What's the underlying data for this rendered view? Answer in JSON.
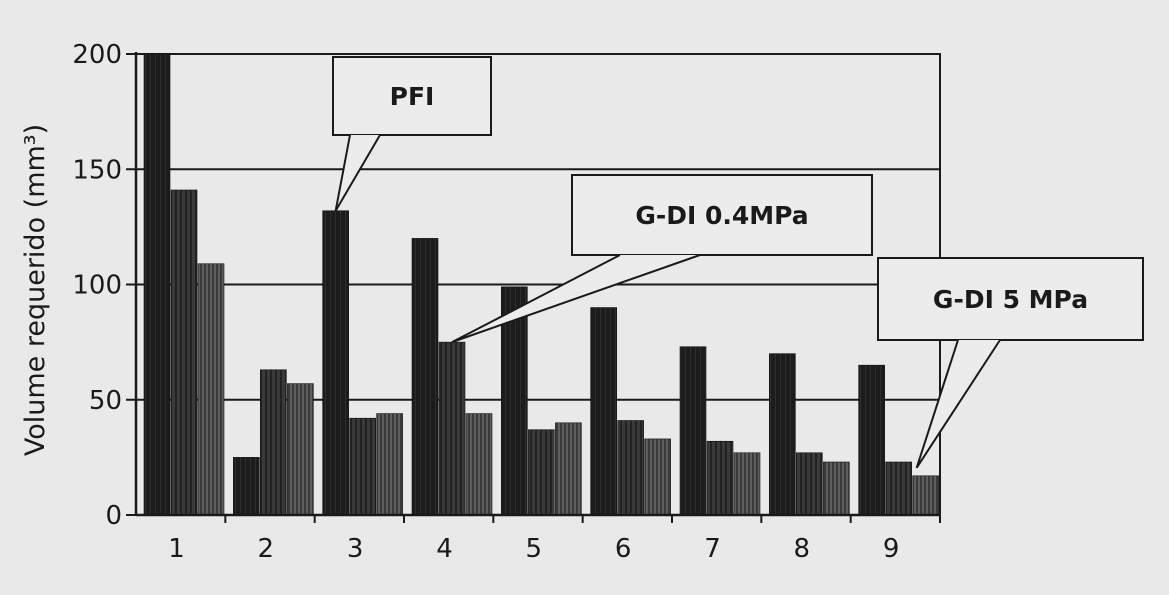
{
  "chart_data": {
    "type": "bar",
    "ylabel": "Volume requerido (mm³)",
    "xlabel": "",
    "ylim": [
      0,
      200
    ],
    "yticks": [
      0,
      50,
      100,
      150,
      200
    ],
    "grid": true,
    "categories": [
      "1",
      "2",
      "3",
      "4",
      "5",
      "6",
      "7",
      "8",
      "9"
    ],
    "series": [
      {
        "name": "PFI",
        "color": "#1c1c1c",
        "values": [
          200,
          25,
          132,
          120,
          99,
          90,
          73,
          70,
          65
        ]
      },
      {
        "name": "G-DI 0.4MPa",
        "color": "#3a3a3a",
        "values": [
          141,
          63,
          42,
          75,
          37,
          41,
          32,
          27,
          23
        ]
      },
      {
        "name": "G-DI 5 MPa",
        "color": "#555555",
        "values": [
          109,
          57,
          44,
          44,
          40,
          33,
          27,
          23,
          17
        ]
      }
    ],
    "annotations": [
      {
        "text": "PFI",
        "points_to": {
          "category": "3",
          "series": "PFI"
        }
      },
      {
        "text": "G-DI 0.4MPa",
        "points_to": {
          "category": "4",
          "series": "G-DI 0.4MPa"
        }
      },
      {
        "text": "G-DI 5 MPa",
        "points_to": {
          "category": "9",
          "series": "G-DI 5 MPa"
        }
      }
    ]
  }
}
